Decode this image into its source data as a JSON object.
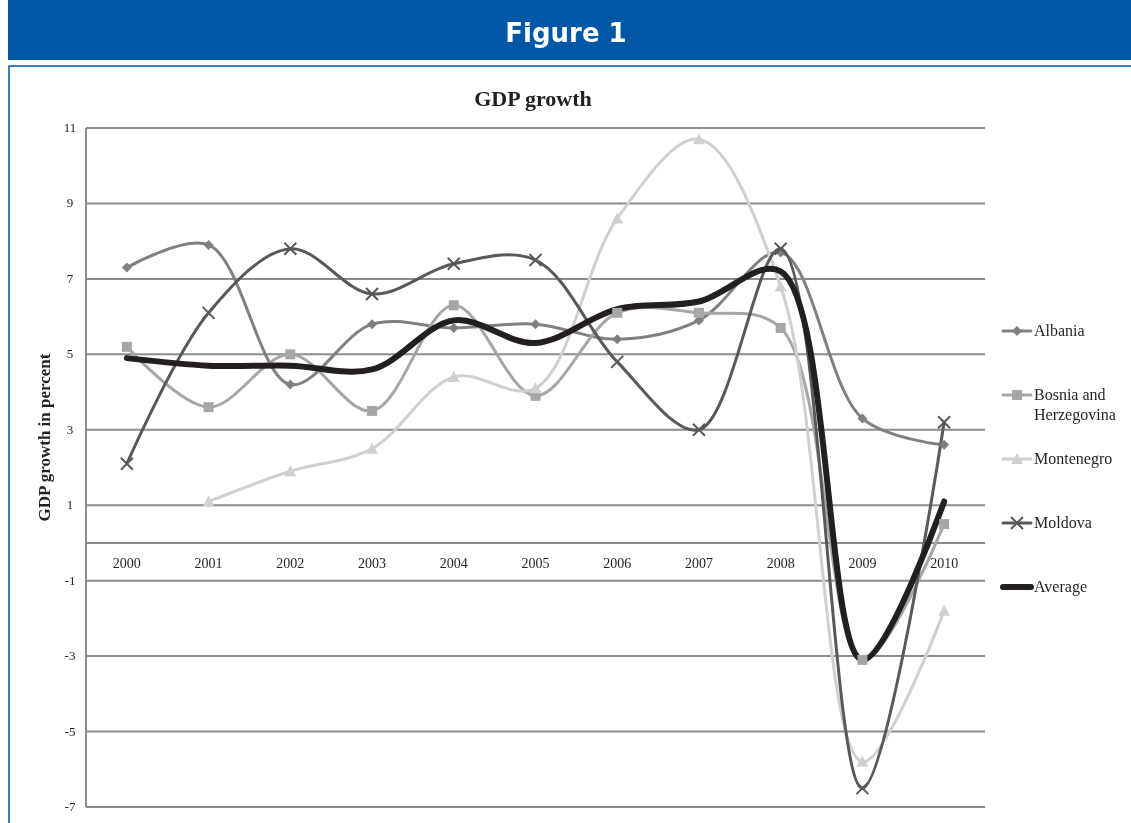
{
  "chart_data": {
    "type": "line",
    "title": "Figure 1",
    "subtitle": "GDP growth",
    "ylabel": "GDP growth in percent",
    "categories": [
      "2000",
      "2001",
      "2002",
      "2003",
      "2004",
      "2005",
      "2006",
      "2007",
      "2008",
      "2009",
      "2010"
    ],
    "series": [
      {
        "name": "Albania",
        "color": "#808080",
        "marker": "diamond",
        "values": [
          7.3,
          7.9,
          4.2,
          5.8,
          5.7,
          5.8,
          5.4,
          5.9,
          7.7,
          3.3,
          2.6
        ]
      },
      {
        "name": "Bosnia and Herzegovina",
        "color": "#a6a6a6",
        "marker": "square",
        "values": [
          5.2,
          3.6,
          5.0,
          3.5,
          6.3,
          3.9,
          6.1,
          6.1,
          5.7,
          -3.1,
          0.5
        ]
      },
      {
        "name": "Montenegro",
        "color": "#d0d0d0",
        "marker": "triangle",
        "values": [
          null,
          1.1,
          1.9,
          2.5,
          4.4,
          4.1,
          8.6,
          10.7,
          6.8,
          -5.8,
          -1.8
        ]
      },
      {
        "name": "Moldova",
        "color": "#595959",
        "marker": "cross",
        "values": [
          2.1,
          6.1,
          7.8,
          6.6,
          7.4,
          7.5,
          4.8,
          3.0,
          7.8,
          -6.5,
          3.2
        ]
      },
      {
        "name": "Average",
        "color": "#231f20",
        "marker": "none",
        "values": [
          4.9,
          4.7,
          4.7,
          4.6,
          5.9,
          5.3,
          6.2,
          6.4,
          7.2,
          -3.1,
          1.1
        ]
      }
    ],
    "ylim": [
      -7,
      11
    ],
    "yticks": [
      -7,
      -5,
      -3,
      -1,
      1,
      3,
      5,
      7,
      9,
      11
    ],
    "grid": "y",
    "legend": "right",
    "line_style": "solid"
  }
}
